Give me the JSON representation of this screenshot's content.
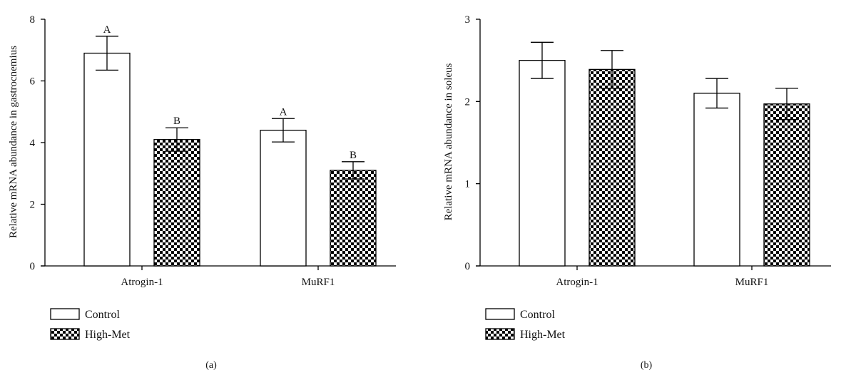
{
  "legend": {
    "items": [
      {
        "label": "Control",
        "pattern": "open"
      },
      {
        "label": "High-Met",
        "pattern": "checker"
      }
    ]
  },
  "chart_data": [
    {
      "type": "bar",
      "panel_label": "(a)",
      "title": "",
      "xlabel": "",
      "ylabel": "Relative mRNA abundance in gastrocnemius",
      "ylim": [
        0,
        8
      ],
      "yticks": [
        0,
        2,
        4,
        6,
        8
      ],
      "categories": [
        "Atrogin-1",
        "MuRF1"
      ],
      "series": [
        {
          "name": "Control",
          "values": [
            6.9,
            4.4
          ],
          "errors": [
            0.55,
            0.38
          ],
          "letters": [
            "A",
            "A"
          ]
        },
        {
          "name": "High-Met",
          "values": [
            4.1,
            3.1
          ],
          "errors": [
            0.38,
            0.28
          ],
          "letters": [
            "B",
            "B"
          ]
        }
      ],
      "grid": false,
      "legend_position": "bottom-left"
    },
    {
      "type": "bar",
      "panel_label": "(b)",
      "title": "",
      "xlabel": "",
      "ylabel": "Relative mRNA abundance in soleus",
      "ylim": [
        0,
        3
      ],
      "yticks": [
        0,
        1,
        2,
        3
      ],
      "categories": [
        "Atrogin-1",
        "MuRF1"
      ],
      "series": [
        {
          "name": "Control",
          "values": [
            2.5,
            2.1
          ],
          "errors": [
            0.22,
            0.18
          ],
          "letters": [
            "",
            ""
          ]
        },
        {
          "name": "High-Met",
          "values": [
            2.39,
            1.97
          ],
          "errors": [
            0.23,
            0.19
          ],
          "letters": [
            "",
            ""
          ]
        }
      ],
      "grid": false,
      "legend_position": "bottom-left"
    }
  ]
}
